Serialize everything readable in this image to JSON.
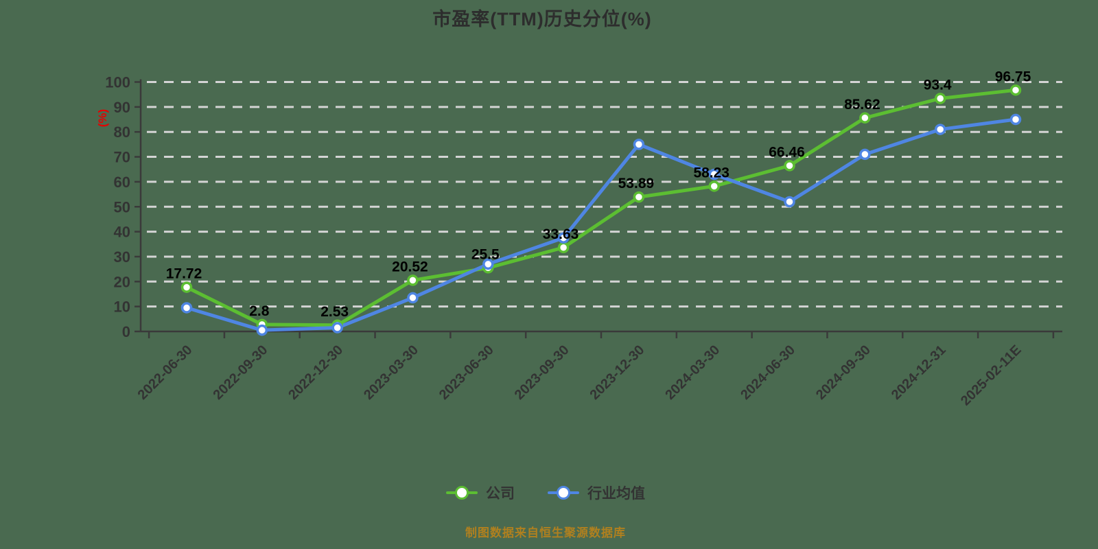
{
  "title": "市盈率(TTM)历史分位(%)",
  "footer": {
    "source_note": "制图数据来自恒生聚源数据库"
  },
  "legend": {
    "items": [
      {
        "label": "公司",
        "color": "#5cbe32"
      },
      {
        "label": "行业均值",
        "color": "#4f86e3"
      }
    ]
  },
  "colors": {
    "background": "#4a6a50",
    "grid": "#d4d4d4",
    "axis": "#3a3a3a",
    "tick_text": "#333333",
    "data_label": "#000000",
    "title_text": "#2d2d2d",
    "unit_label": "#e60000",
    "footer_text": "#b0801f",
    "company_line": "#5cbe32",
    "industry_line": "#4f86e3",
    "marker_fill": "#ffffff"
  },
  "chart_data": {
    "type": "line",
    "title": "市盈率(TTM)历史分位(%)",
    "ylabel": "(%)",
    "ylim": [
      0,
      100
    ],
    "ytick_interval": 10,
    "grid": "horizontal-dashed",
    "legend_position": "bottom",
    "categories": [
      "2022-06-30",
      "2022-09-30",
      "2022-12-30",
      "2023-03-30",
      "2023-06-30",
      "2023-09-30",
      "2023-12-30",
      "2024-03-30",
      "2024-06-30",
      "2024-09-30",
      "2024-12-31",
      "2025-02-11E"
    ],
    "series": [
      {
        "name": "公司",
        "color": "#5cbe32",
        "show_point_labels": true,
        "values": [
          17.72,
          2.8,
          2.53,
          20.52,
          25.5,
          33.63,
          53.89,
          58.23,
          66.46,
          85.62,
          93.4,
          96.75
        ]
      },
      {
        "name": "行业均值",
        "color": "#4f86e3",
        "show_point_labels": false,
        "values": [
          9.5,
          0.5,
          1.5,
          13.5,
          27,
          37.5,
          75,
          63,
          52,
          71,
          81,
          85
        ]
      }
    ]
  }
}
